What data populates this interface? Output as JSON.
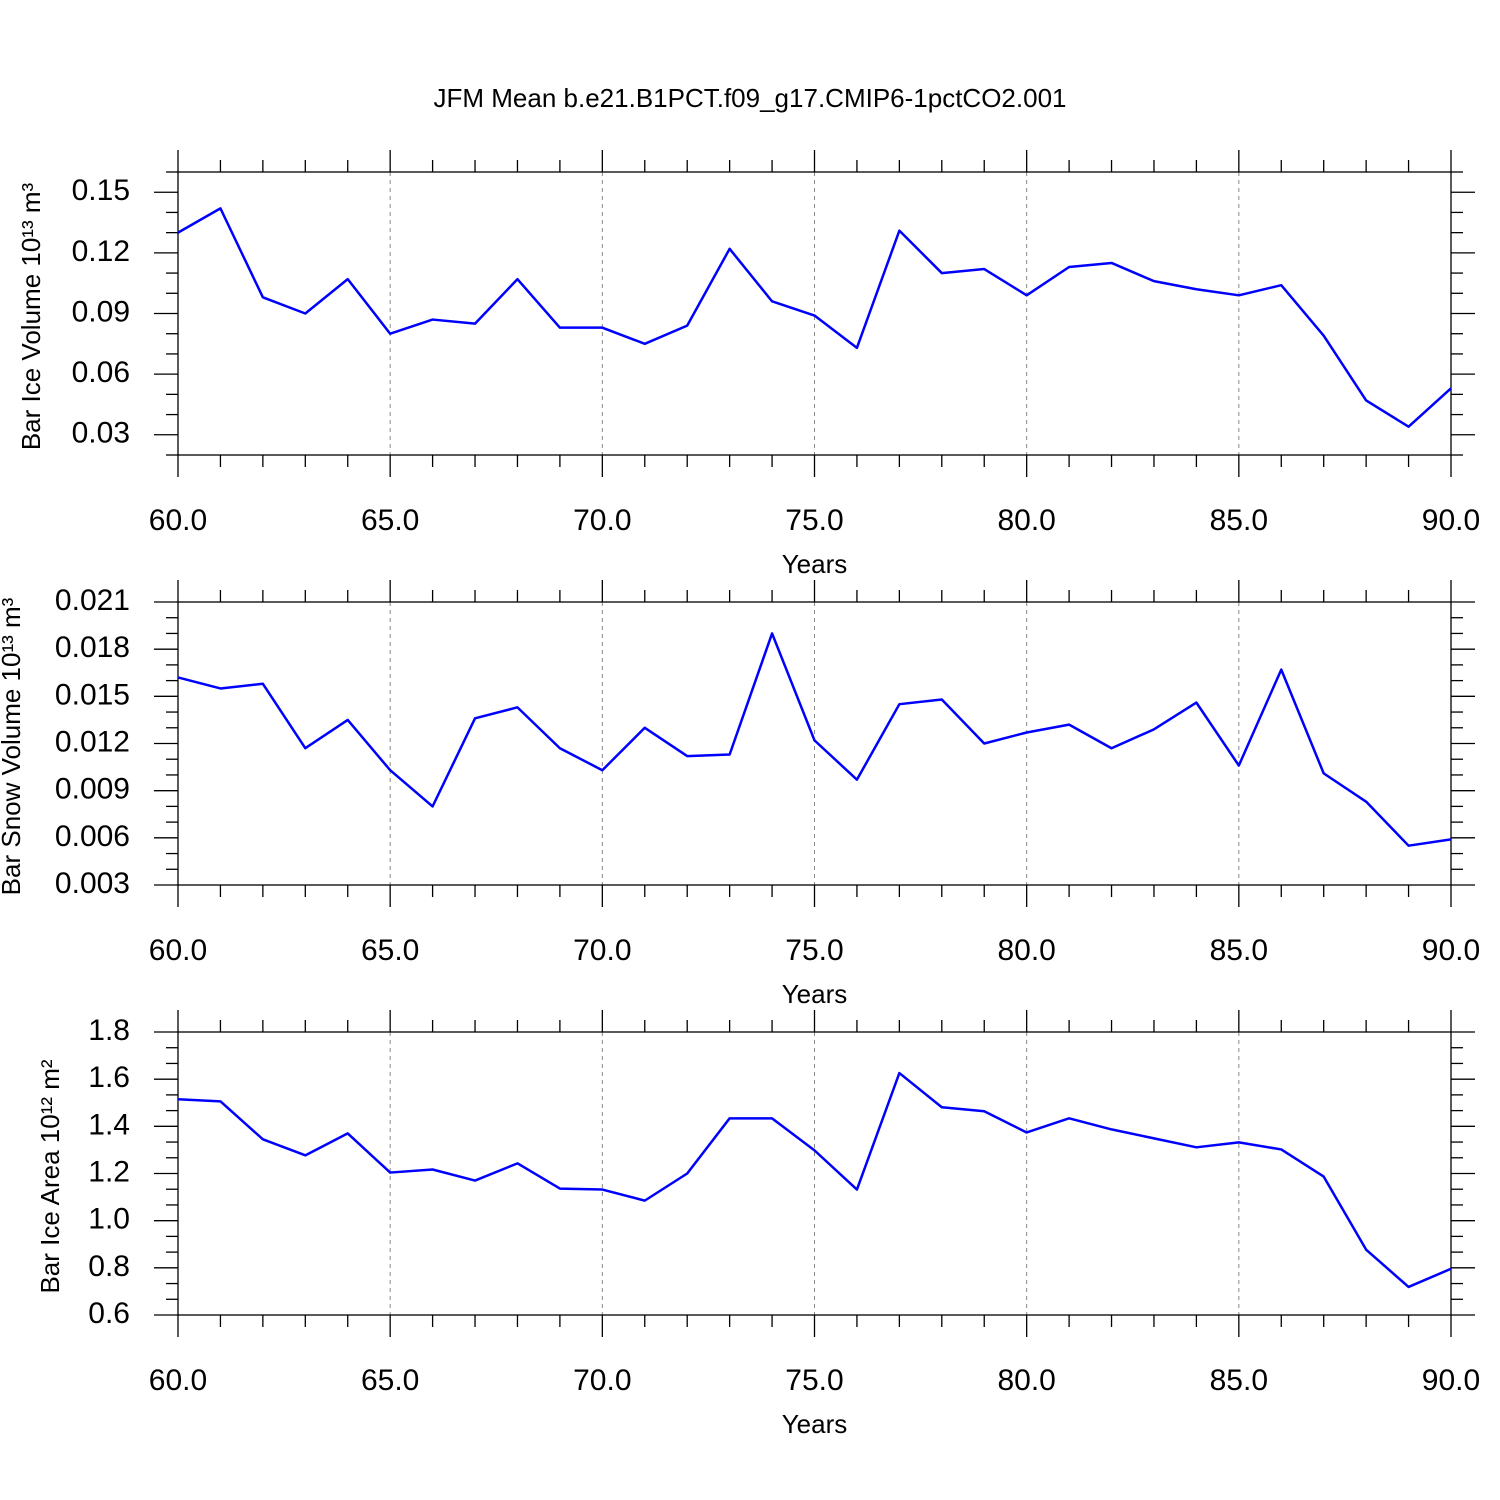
{
  "title": "JFM Mean b.e21.B1PCT.f09_g17.CMIP6-1pctCO2.001",
  "chart_data": [
    {
      "type": "line",
      "ylabel": "Bar Ice Volume 10¹³ m³",
      "xlabel": "Years",
      "x": [
        60,
        61,
        62,
        63,
        64,
        65,
        66,
        67,
        68,
        69,
        70,
        71,
        72,
        73,
        74,
        75,
        76,
        77,
        78,
        79,
        80,
        81,
        82,
        83,
        84,
        85,
        86,
        87,
        88,
        89,
        90
      ],
      "values": [
        0.13,
        0.142,
        0.098,
        0.09,
        0.107,
        0.08,
        0.087,
        0.085,
        0.107,
        0.083,
        0.083,
        0.075,
        0.084,
        0.122,
        0.096,
        0.089,
        0.073,
        0.131,
        0.11,
        0.112,
        0.099,
        0.113,
        0.115,
        0.106,
        0.102,
        0.099,
        0.104,
        0.079,
        0.047,
        0.034,
        0.053
      ],
      "color": "#0000ff",
      "xlim": [
        60,
        90
      ],
      "xticks": [
        {
          "value": 60,
          "label": "60.0"
        },
        {
          "value": 65,
          "label": "65.0"
        },
        {
          "value": 70,
          "label": "70.0"
        },
        {
          "value": 75,
          "label": "75.0"
        },
        {
          "value": 80,
          "label": "80.0"
        },
        {
          "value": 85,
          "label": "85.0"
        },
        {
          "value": 90,
          "label": "90.0"
        }
      ],
      "ylim": [
        0.02,
        0.16
      ],
      "yticks": [
        0.03,
        0.06,
        0.09,
        0.12,
        0.15
      ],
      "grid": true
    },
    {
      "type": "line",
      "ylabel": "Bar Snow Volume 10¹³ m³",
      "xlabel": "Years",
      "x": [
        60,
        61,
        62,
        63,
        64,
        65,
        66,
        67,
        68,
        69,
        70,
        71,
        72,
        73,
        74,
        75,
        76,
        77,
        78,
        79,
        80,
        81,
        82,
        83,
        84,
        85,
        86,
        87,
        88,
        89,
        90
      ],
      "values": [
        0.0162,
        0.0155,
        0.0158,
        0.0117,
        0.0135,
        0.0103,
        0.008,
        0.0136,
        0.0143,
        0.0117,
        0.0103,
        0.013,
        0.0112,
        0.0113,
        0.019,
        0.0122,
        0.0097,
        0.0145,
        0.0148,
        0.012,
        0.0127,
        0.0132,
        0.0117,
        0.0129,
        0.0146,
        0.0106,
        0.0167,
        0.0101,
        0.0083,
        0.0055,
        0.0059
      ],
      "color": "#0000ff",
      "xlim": [
        60,
        90
      ],
      "xticks": [
        {
          "value": 60,
          "label": "60.0"
        },
        {
          "value": 65,
          "label": "65.0"
        },
        {
          "value": 70,
          "label": "70.0"
        },
        {
          "value": 75,
          "label": "75.0"
        },
        {
          "value": 80,
          "label": "80.0"
        },
        {
          "value": 85,
          "label": "85.0"
        },
        {
          "value": 90,
          "label": "90.0"
        }
      ],
      "ylim": [
        0.003,
        0.021
      ],
      "yticks": [
        0.003,
        0.006,
        0.009,
        0.012,
        0.015,
        0.018,
        0.021
      ],
      "grid": true
    },
    {
      "type": "line",
      "ylabel": "Bar Ice Area 10¹² m²",
      "xlabel": "Years",
      "x": [
        60,
        61,
        62,
        63,
        64,
        65,
        66,
        67,
        68,
        69,
        70,
        71,
        72,
        73,
        74,
        75,
        76,
        77,
        78,
        79,
        80,
        81,
        82,
        83,
        84,
        85,
        86,
        87,
        88,
        89,
        90
      ],
      "values": [
        1.515,
        1.506,
        1.345,
        1.277,
        1.37,
        1.204,
        1.217,
        1.17,
        1.243,
        1.136,
        1.132,
        1.085,
        1.2,
        1.434,
        1.434,
        1.298,
        1.132,
        1.626,
        1.481,
        1.464,
        1.374,
        1.434,
        1.387,
        1.349,
        1.311,
        1.332,
        1.302,
        1.187,
        0.877,
        0.719,
        0.796
      ],
      "color": "#0000ff",
      "xlim": [
        60,
        90
      ],
      "xticks": [
        {
          "value": 60,
          "label": "60.0"
        },
        {
          "value": 65,
          "label": "65.0"
        },
        {
          "value": 70,
          "label": "70.0"
        },
        {
          "value": 75,
          "label": "75.0"
        },
        {
          "value": 80,
          "label": "80.0"
        },
        {
          "value": 85,
          "label": "85.0"
        },
        {
          "value": 90,
          "label": "90.0"
        }
      ],
      "ylim": [
        0.6,
        1.8
      ],
      "yticks": [
        0.6,
        0.8,
        {
          "value": 1,
          "label": "1.0"
        },
        1.2,
        1.4,
        1.6,
        1.8
      ],
      "grid": true
    }
  ]
}
